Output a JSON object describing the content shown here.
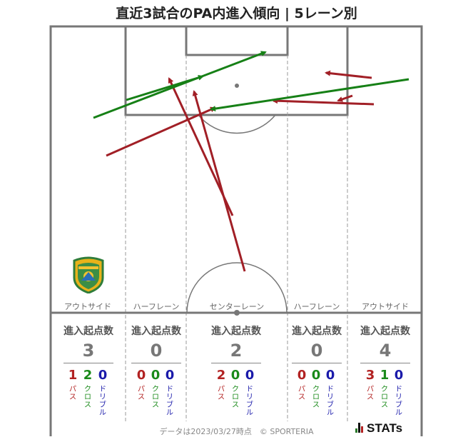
{
  "title": "直近3試合のPA内進入傾向 | 5レーン別",
  "colors": {
    "pass": "#a11f26",
    "cross": "#168016",
    "dribble": "#1a1aaa",
    "pitch_line": "#777777",
    "lane_line": "#999999"
  },
  "lanes": [
    {
      "label": "アウトサイド",
      "stat_title": "進入起点数",
      "total": "3",
      "pass": "1",
      "cross": "2",
      "dribble": "0"
    },
    {
      "label": "ハーフレーン",
      "stat_title": "進入起点数",
      "total": "0",
      "pass": "0",
      "cross": "0",
      "dribble": "0"
    },
    {
      "label": "センターレーン",
      "stat_title": "進入起点数",
      "total": "2",
      "pass": "2",
      "cross": "0",
      "dribble": "0"
    },
    {
      "label": "ハーフレーン",
      "stat_title": "進入起点数",
      "total": "0",
      "pass": "0",
      "cross": "0",
      "dribble": "0"
    },
    {
      "label": "アウトサイド",
      "stat_title": "進入起点数",
      "total": "4",
      "pass": "3",
      "cross": "1",
      "dribble": "0"
    }
  ],
  "breakdown_labels": {
    "pass": "パス",
    "cross": "クロス",
    "dribble": "ドリブル"
  },
  "footer": "データは2023/03/27時点　© SPORTERIA",
  "brand": "STATs",
  "chart_data": {
    "type": "pitch-arrows",
    "series": [
      {
        "name": "パス",
        "arrows": [
          {
            "from_lane": "センターレーン",
            "kind": "pass"
          },
          {
            "from_lane": "センターレーン",
            "kind": "pass"
          },
          {
            "from_lane": "アウトサイド",
            "kind": "pass"
          },
          {
            "from_lane": "アウトサイド",
            "kind": "pass"
          },
          {
            "from_lane": "アウトサイド",
            "kind": "pass"
          },
          {
            "from_lane": "アウトサイド",
            "kind": "pass"
          }
        ]
      },
      {
        "name": "クロス",
        "arrows": [
          {
            "from_lane": "アウトサイド",
            "kind": "cross"
          },
          {
            "from_lane": "アウトサイド",
            "kind": "cross"
          },
          {
            "from_lane": "アウトサイド",
            "kind": "cross"
          }
        ]
      }
    ]
  }
}
